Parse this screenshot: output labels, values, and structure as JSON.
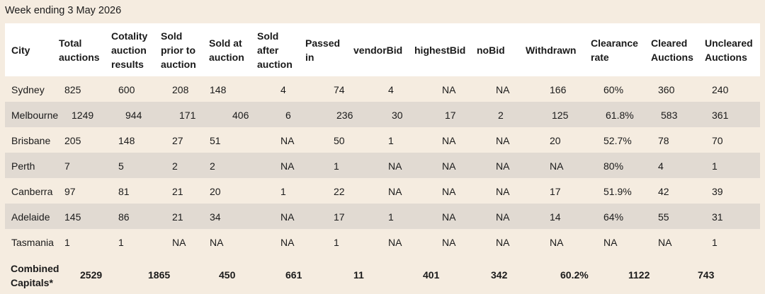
{
  "caption": "Week ending 3 May 2026",
  "headers": [
    "City",
    "Total auctions",
    "Cotality auction results",
    "Sold prior to auction",
    "Sold at auction",
    "Sold after auction",
    "Passed in",
    "vendorBid",
    "highestBid",
    "noBid",
    "Withdrawn",
    "Clearance rate",
    "Cleared Auctions",
    "Uncleared Auctions"
  ],
  "rows": [
    [
      "Sydney",
      "825",
      "600",
      "208",
      "148",
      "4",
      "74",
      "4",
      "NA",
      "NA",
      "166",
      "60%",
      "360",
      "240"
    ],
    [
      "Melbourne",
      "1249",
      "944",
      "171",
      "406",
      "6",
      "236",
      "30",
      "17",
      "2",
      "125",
      "61.8%",
      "583",
      "361"
    ],
    [
      "Brisbane",
      "205",
      "148",
      "27",
      "51",
      "NA",
      "50",
      "1",
      "NA",
      "NA",
      "20",
      "52.7%",
      "78",
      "70"
    ],
    [
      "Perth",
      "7",
      "5",
      "2",
      "2",
      "NA",
      "1",
      "NA",
      "NA",
      "NA",
      "NA",
      "80%",
      "4",
      "1"
    ],
    [
      "Canberra",
      "97",
      "81",
      "21",
      "20",
      "1",
      "22",
      "NA",
      "NA",
      "NA",
      "17",
      "51.9%",
      "42",
      "39"
    ],
    [
      "Adelaide",
      "145",
      "86",
      "21",
      "34",
      "NA",
      "17",
      "1",
      "NA",
      "NA",
      "14",
      "64%",
      "55",
      "31"
    ],
    [
      "Tasmania",
      "1",
      "1",
      "NA",
      "NA",
      "NA",
      "1",
      "NA",
      "NA",
      "NA",
      "NA",
      "NA",
      "NA",
      "1"
    ]
  ],
  "totals": {
    "label": "Combined Capitals*",
    "values": [
      "2529",
      "1865",
      "450",
      "661",
      "11",
      "401",
      "342",
      "60.2%",
      "1122",
      "743"
    ]
  }
}
